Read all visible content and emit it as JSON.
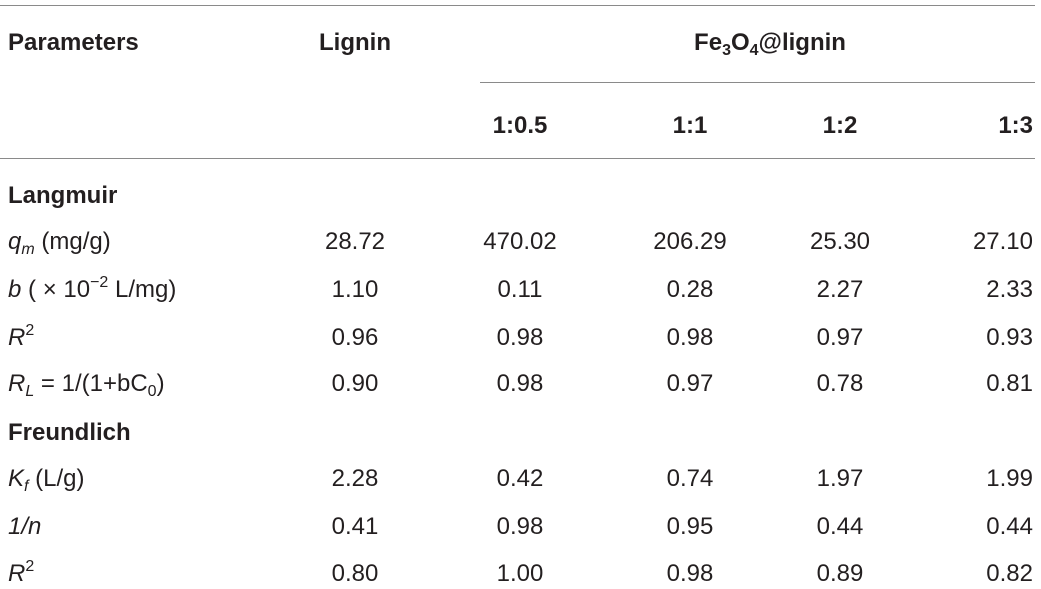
{
  "header": {
    "parameters": "Parameters",
    "lignin": "Lignin",
    "composite": [
      "Fe",
      "3",
      "O",
      "4",
      "@lignin"
    ],
    "ratios": [
      "1:0.5",
      "1:1",
      "1:2",
      "1:3"
    ]
  },
  "sections": [
    {
      "title": "Langmuir",
      "rows": [
        {
          "label": [
            "q",
            "m",
            " (mg/g)"
          ],
          "values": [
            "28.72",
            "470.02",
            "206.29",
            "25.30",
            "27.10"
          ]
        },
        {
          "label": [
            "b",
            " ( × 10",
            "−2",
            " L/mg)"
          ],
          "values": [
            "1.10",
            "0.11",
            "0.28",
            "2.27",
            "2.33"
          ]
        },
        {
          "label": [
            "R",
            "2"
          ],
          "values": [
            "0.96",
            "0.98",
            "0.98",
            "0.97",
            "0.93"
          ]
        },
        {
          "label": [
            "R",
            "L",
            " = 1/(1+bC",
            "0",
            ")"
          ],
          "values": [
            "0.90",
            "0.98",
            "0.97",
            "0.78",
            "0.81"
          ]
        }
      ]
    },
    {
      "title": "Freundlich",
      "rows": [
        {
          "label": [
            "K",
            "f",
            " (L/g)"
          ],
          "values": [
            "2.28",
            "0.42",
            "0.74",
            "1.97",
            "1.99"
          ]
        },
        {
          "label": [
            "1/n"
          ],
          "values": [
            "0.41",
            "0.98",
            "0.95",
            "0.44",
            "0.44"
          ]
        },
        {
          "label": [
            "R",
            "2"
          ],
          "values": [
            "0.80",
            "1.00",
            "0.98",
            "0.89",
            "0.82"
          ]
        }
      ]
    }
  ]
}
